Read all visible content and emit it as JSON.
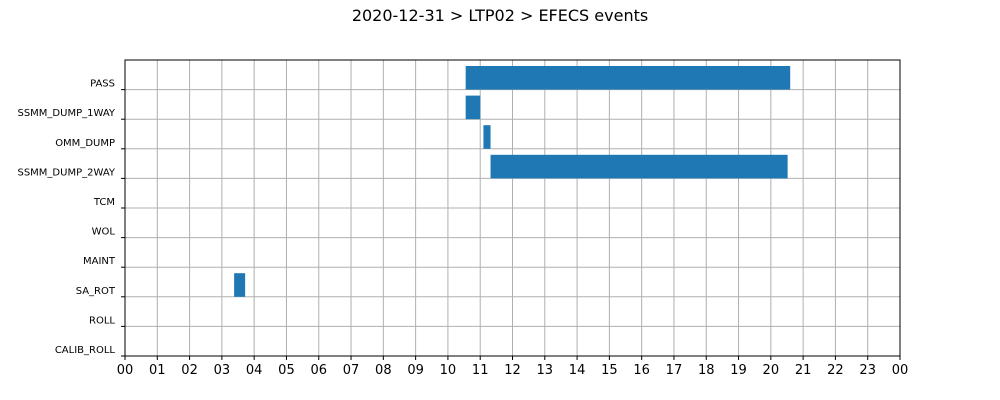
{
  "chart_data": {
    "type": "bar",
    "orientation": "horizontal-timeline",
    "title": "2020-12-31 > LTP02 > EFECS events",
    "xlabel": "",
    "ylabel": "",
    "grid": true,
    "xlim": [
      0,
      24
    ],
    "x_ticks": [
      "00",
      "01",
      "02",
      "03",
      "04",
      "05",
      "06",
      "07",
      "08",
      "09",
      "10",
      "11",
      "12",
      "13",
      "14",
      "15",
      "16",
      "17",
      "18",
      "19",
      "20",
      "21",
      "22",
      "23",
      "00"
    ],
    "categories": [
      "PASS",
      "SSMM_DUMP_1WAY",
      "OMM_DUMP",
      "SSMM_DUMP_2WAY",
      "TCM",
      "WOL",
      "MAINT",
      "SA_ROT",
      "ROLL",
      "CALIB_ROLL"
    ],
    "bar_color": "#1f77b4",
    "events": [
      {
        "category": "PASS",
        "start": 10.55,
        "end": 20.6
      },
      {
        "category": "SSMM_DUMP_1WAY",
        "start": 10.55,
        "end": 11.0
      },
      {
        "category": "OMM_DUMP",
        "start": 11.1,
        "end": 11.32
      },
      {
        "category": "SSMM_DUMP_2WAY",
        "start": 11.32,
        "end": 20.52
      },
      {
        "category": "SA_ROT",
        "start": 3.38,
        "end": 3.72
      }
    ]
  }
}
